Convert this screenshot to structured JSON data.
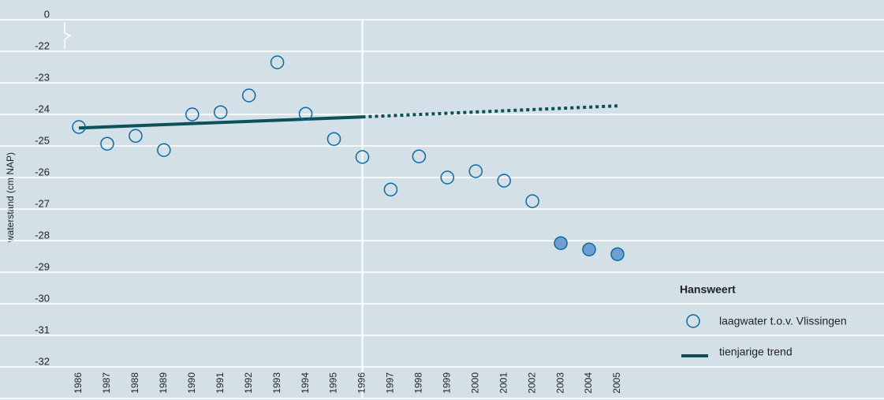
{
  "chart_data": {
    "type": "scatter",
    "y_label": "waterstand (cm NAP)",
    "categories": [
      "1986",
      "1987",
      "1988",
      "1989",
      "1990",
      "1991",
      "1992",
      "1993",
      "1994",
      "1995",
      "1996",
      "1997",
      "1998",
      "1999",
      "2000",
      "2001",
      "2002",
      "2003",
      "2004",
      "2005"
    ],
    "ylim": [
      -32,
      -21
    ],
    "yticks": [
      0,
      -22,
      -23,
      -24,
      -25,
      -26,
      -27,
      -28,
      -29,
      -30,
      -31,
      -32
    ],
    "y_break": true,
    "grid": true,
    "divider_at": "1996",
    "legend_title": "Hansweert",
    "legend": "right",
    "series": [
      {
        "name": "laagwater t.o.v. Vlissingen",
        "color": "#0a6a9e",
        "fill": "#6f9fd2",
        "values": [
          -24.4,
          -24.93,
          -24.68,
          -25.13,
          -24.0,
          -23.93,
          -23.4,
          -22.35,
          -23.98,
          -24.78,
          -25.35,
          -26.38,
          -25.33,
          -26.0,
          -25.8,
          -26.1,
          -26.75,
          -28.08,
          -28.28,
          -28.43
        ],
        "filled": [
          false,
          false,
          false,
          false,
          false,
          false,
          false,
          false,
          false,
          false,
          false,
          false,
          false,
          false,
          false,
          false,
          false,
          true,
          true,
          true
        ]
      }
    ],
    "trend": {
      "name": "tienjarige trend",
      "color": "#0b5157",
      "x": [
        "1986",
        "1996",
        "2005"
      ],
      "values": [
        -24.43,
        -24.08,
        -23.73
      ],
      "dotted_from": 1
    }
  }
}
